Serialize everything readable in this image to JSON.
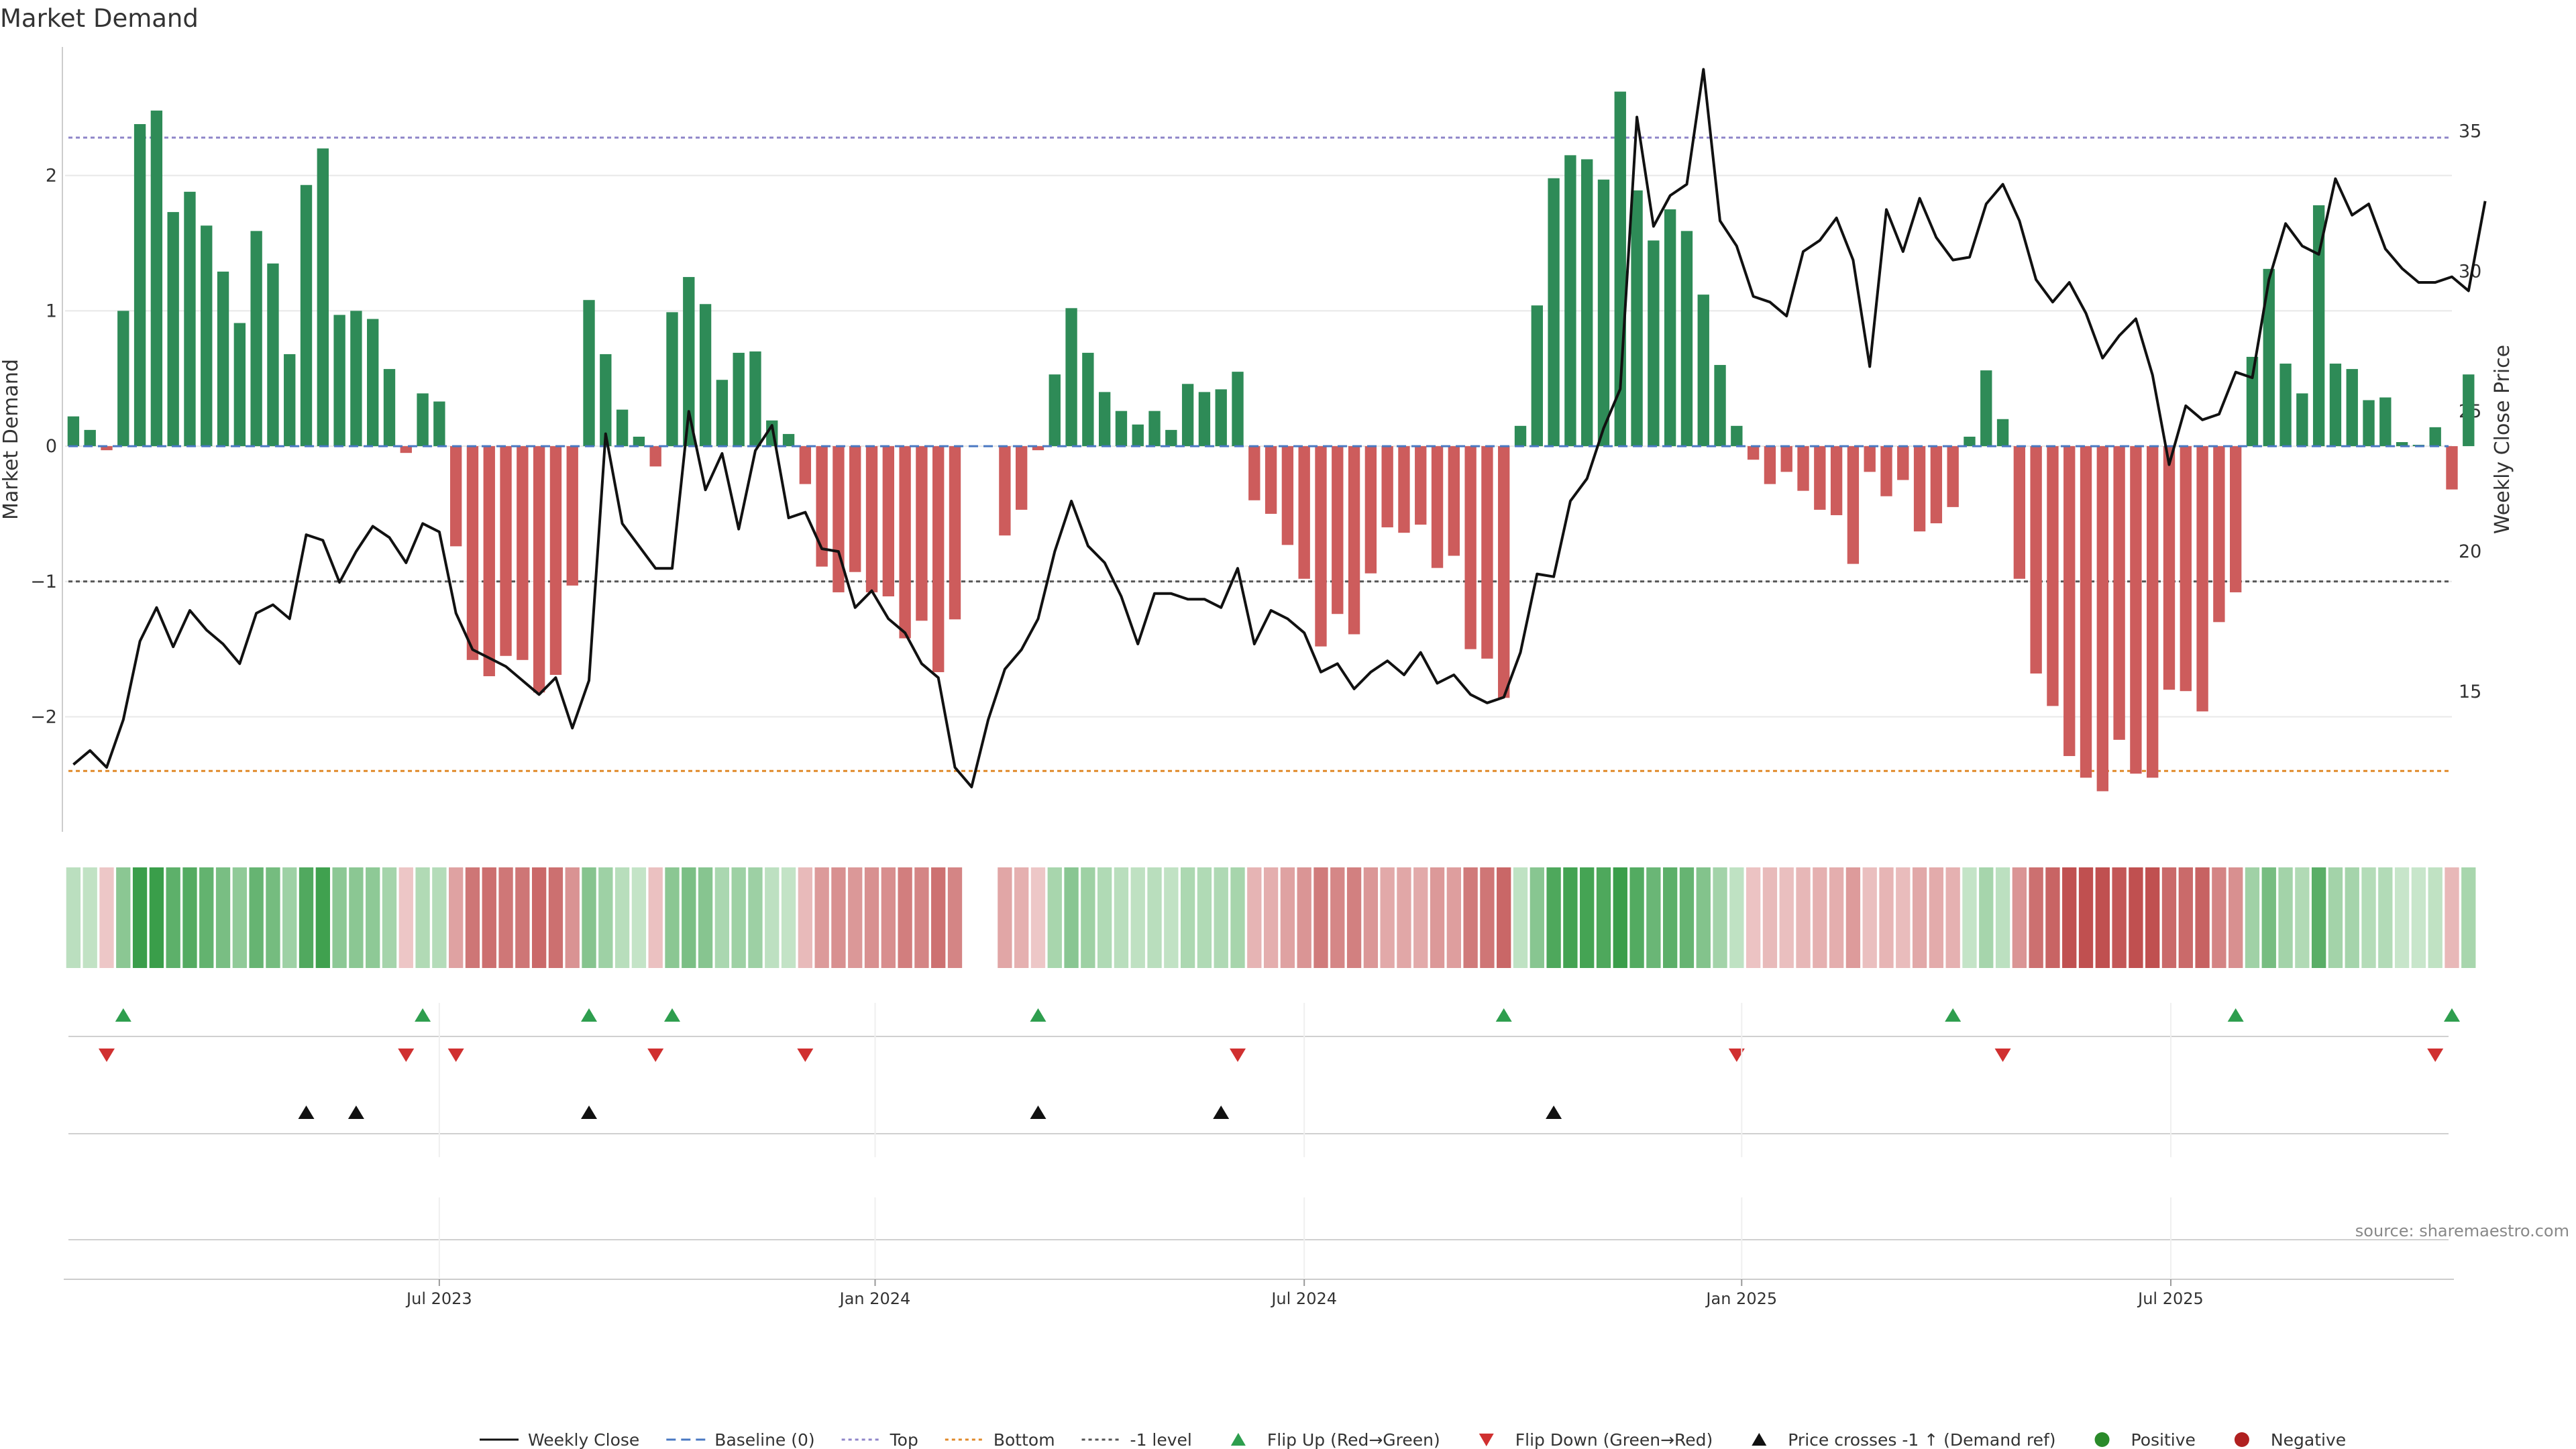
{
  "chart_data": {
    "type": "bar",
    "title": "Market Demand",
    "ylabel": "Market Demand",
    "y2label": "Weekly Close Price",
    "ylim": [
      -2.85,
      2.95
    ],
    "y2lim": [
      10.0,
      38.0
    ],
    "yticks": [
      2,
      1,
      0,
      -1,
      -2
    ],
    "yticks_labels": [
      "2",
      "1",
      "0",
      "−1",
      "−2"
    ],
    "y2ticks": [
      35,
      30,
      25,
      20,
      15
    ],
    "y2ticks_labels": [
      "35",
      "30",
      "25",
      "20",
      "15"
    ],
    "x_range_weeks": [
      0,
      143.5
    ],
    "xticks": [
      {
        "label": "Jul 2023",
        "week": 22
      },
      {
        "label": "Jan 2024",
        "week": 48.2
      },
      {
        "label": "Jul 2024",
        "week": 74
      },
      {
        "label": "Jan 2025",
        "week": 100.3
      },
      {
        "label": "Jul 2025",
        "week": 126.1
      }
    ],
    "reference_lines": [
      {
        "name": "Top",
        "value": 2.28,
        "color": "#8f86c9"
      },
      {
        "name": "-1 level",
        "value": -1.0,
        "color": "#555555"
      },
      {
        "name": "Bottom",
        "value": -2.4,
        "color": "#e08a2a"
      }
    ],
    "series": [
      {
        "name": "Market Demand",
        "values": [
          0.22,
          0.12,
          -0.03,
          1.0,
          2.38,
          2.48,
          1.73,
          1.88,
          1.63,
          1.29,
          0.91,
          1.59,
          1.35,
          0.68,
          1.93,
          2.2,
          0.97,
          1.0,
          0.94,
          0.57,
          -0.05,
          0.39,
          0.33,
          -0.74,
          -1.58,
          -1.7,
          -1.55,
          -1.58,
          -1.82,
          -1.69,
          -1.03,
          1.08,
          0.68,
          0.27,
          0.07,
          -0.15,
          0.99,
          1.25,
          1.05,
          0.49,
          0.69,
          0.7,
          0.19,
          0.09,
          -0.28,
          -0.89,
          -1.08,
          -0.93,
          -1.08,
          -1.11,
          -1.42,
          -1.29,
          -1.67,
          -1.28,
          0.0,
          0.0,
          -0.66,
          -0.47,
          -0.03,
          0.53,
          1.02,
          0.69,
          0.4,
          0.26,
          0.16,
          0.26,
          0.12,
          0.46,
          0.4,
          0.42,
          0.55,
          -0.4,
          -0.5,
          -0.73,
          -0.98,
          -1.48,
          -1.24,
          -1.39,
          -0.94,
          -0.6,
          -0.64,
          -0.58,
          -0.9,
          -0.81,
          -1.5,
          -1.57,
          -1.86,
          0.15,
          1.04,
          1.98,
          2.15,
          2.12,
          1.97,
          2.62,
          1.89,
          1.52,
          1.75,
          1.59,
          1.12,
          0.6,
          0.15,
          -0.1,
          -0.28,
          -0.19,
          -0.33,
          -0.47,
          -0.51,
          -0.87,
          -0.19,
          -0.37,
          -0.25,
          -0.63,
          -0.57,
          -0.45,
          0.07,
          0.56,
          0.2,
          -0.98,
          -1.68,
          -1.92,
          -2.29,
          -2.45,
          -2.55,
          -2.17,
          -2.42,
          -2.45,
          -1.8,
          -1.81,
          -1.96,
          -1.3,
          -1.08,
          0.66,
          1.31,
          0.61,
          0.39,
          1.78,
          0.61,
          0.57,
          0.34,
          0.36,
          0.03,
          0.01,
          0.14,
          -0.32,
          0.53
        ]
      },
      {
        "name": "Weekly Close",
        "values": [
          12.4,
          12.9,
          12.3,
          14.0,
          16.8,
          18.0,
          16.6,
          17.9,
          17.2,
          16.7,
          16.0,
          17.8,
          18.1,
          17.6,
          20.6,
          20.4,
          18.9,
          20.0,
          20.9,
          20.5,
          19.6,
          21.0,
          20.7,
          17.8,
          16.5,
          16.2,
          15.9,
          15.4,
          14.9,
          15.5,
          13.7,
          15.4,
          24.2,
          21.0,
          20.2,
          19.4,
          19.4,
          25.0,
          22.2,
          23.5,
          20.8,
          23.6,
          24.5,
          21.2,
          21.4,
          20.1,
          20.0,
          18.0,
          18.6,
          17.6,
          17.1,
          16.0,
          15.5,
          12.3,
          11.6,
          14.0,
          15.8,
          16.5,
          17.6,
          20.0,
          21.8,
          20.2,
          19.6,
          18.4,
          16.7,
          18.5,
          18.5,
          18.3,
          18.3,
          18.0,
          19.4,
          16.7,
          17.9,
          17.6,
          17.1,
          15.7,
          16.0,
          15.1,
          15.7,
          16.1,
          15.6,
          16.4,
          15.3,
          15.6,
          14.9,
          14.6,
          14.8,
          16.4,
          19.2,
          19.1,
          21.8,
          22.6,
          24.4,
          25.8,
          35.5,
          31.6,
          32.7,
          33.1,
          37.2,
          31.8,
          30.9,
          29.1,
          28.9,
          28.4,
          30.7,
          31.1,
          31.9,
          30.4,
          26.6,
          32.2,
          30.7,
          32.6,
          31.2,
          30.4,
          30.5,
          32.4,
          33.1,
          31.8,
          29.7,
          28.9,
          29.6,
          28.5,
          26.9,
          27.7,
          28.3,
          26.3,
          23.1,
          25.2,
          24.7,
          24.9,
          26.4,
          26.2,
          29.7,
          31.7,
          30.9,
          30.6,
          33.3,
          32.0,
          32.4,
          30.8,
          30.1,
          29.6,
          29.6,
          29.8,
          29.3,
          32.5
        ]
      }
    ],
    "flip_up_weeks": [
      3,
      21,
      31,
      36,
      58,
      86,
      113,
      130,
      143
    ],
    "flip_down_weeks": [
      2,
      20,
      23,
      35,
      44,
      70,
      100,
      116,
      142
    ],
    "price_cross_weeks": [
      14,
      17,
      31,
      58,
      69,
      89
    ],
    "annotations": [
      "source: sharemaestro.com"
    ],
    "legend": {
      "position": "bottom",
      "entries": [
        {
          "label": "Weekly Close",
          "kind": "line-solid",
          "color": "#111111"
        },
        {
          "label": "Baseline (0)",
          "kind": "line-dash",
          "color": "#4a78c2"
        },
        {
          "label": "Top",
          "kind": "line-dot",
          "color": "#8f86c9"
        },
        {
          "label": "Bottom",
          "kind": "line-dot",
          "color": "#e08a2a"
        },
        {
          "label": "-1 level",
          "kind": "line-dot",
          "color": "#555555"
        },
        {
          "label": "Flip Up (Red→Green)",
          "kind": "tri-up",
          "color": "#2e9e4e"
        },
        {
          "label": "Flip Down (Green→Red)",
          "kind": "tri-down",
          "color": "#d03030"
        },
        {
          "label": "Price crosses -1 ↑ (Demand ref)",
          "kind": "tri-up",
          "color": "#111111"
        },
        {
          "label": "Positive",
          "kind": "dot",
          "color": "#2a8a2a"
        },
        {
          "label": "Negative",
          "kind": "dot",
          "color": "#b02020"
        }
      ]
    }
  },
  "colors": {
    "positive_bar": "#2e8b57",
    "negative_bar": "#cd5c5c",
    "price_line": "#111111",
    "grid": "#e8e8e8",
    "axis": "#cccccc",
    "text": "#333333",
    "source_text": "#888888"
  }
}
